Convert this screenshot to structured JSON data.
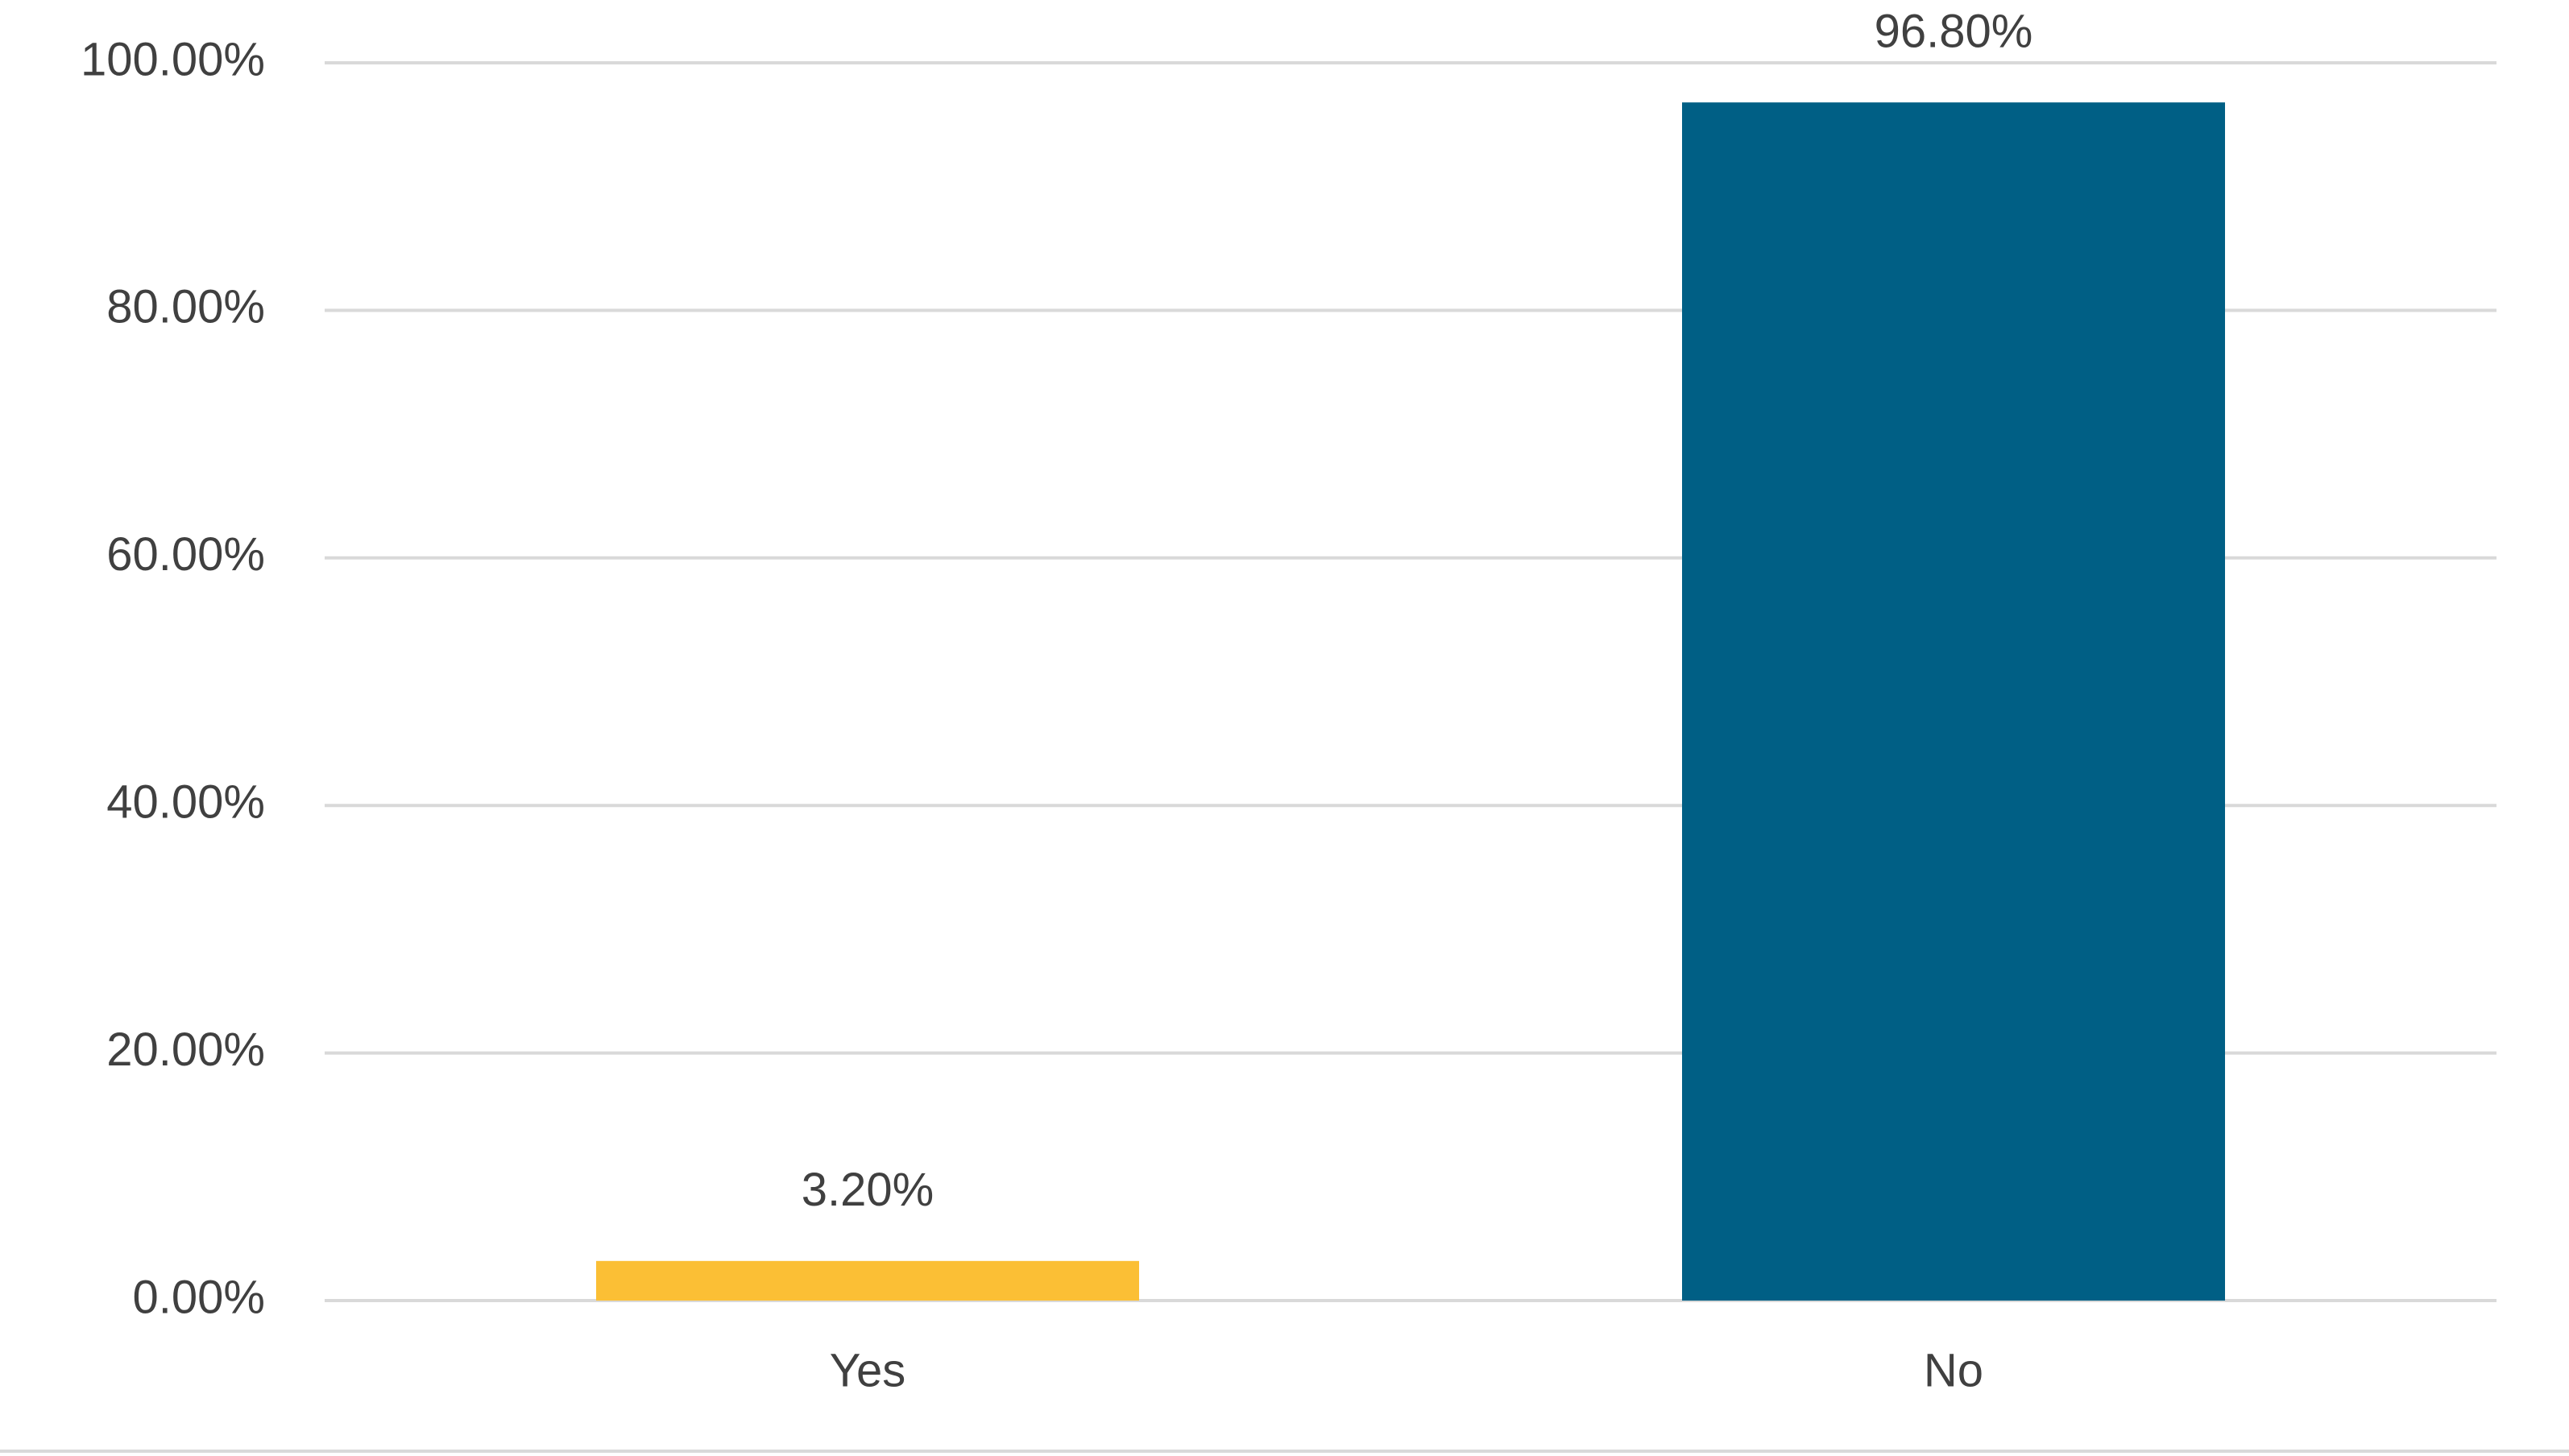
{
  "chart_data": {
    "type": "bar",
    "categories": [
      "Yes",
      "No"
    ],
    "values": [
      3.2,
      96.8
    ],
    "value_labels": [
      "3.20%",
      "96.80%"
    ],
    "colors": [
      "#fbbf35",
      "#005f85"
    ],
    "ylim": [
      0,
      100
    ],
    "yticks": [
      {
        "value": 0,
        "label": "0.00%"
      },
      {
        "value": 20,
        "label": "20.00%"
      },
      {
        "value": 40,
        "label": "40.00%"
      },
      {
        "value": 60,
        "label": "60.00%"
      },
      {
        "value": 80,
        "label": "80.00%"
      },
      {
        "value": 100,
        "label": "100.00%"
      }
    ],
    "grid": true
  }
}
